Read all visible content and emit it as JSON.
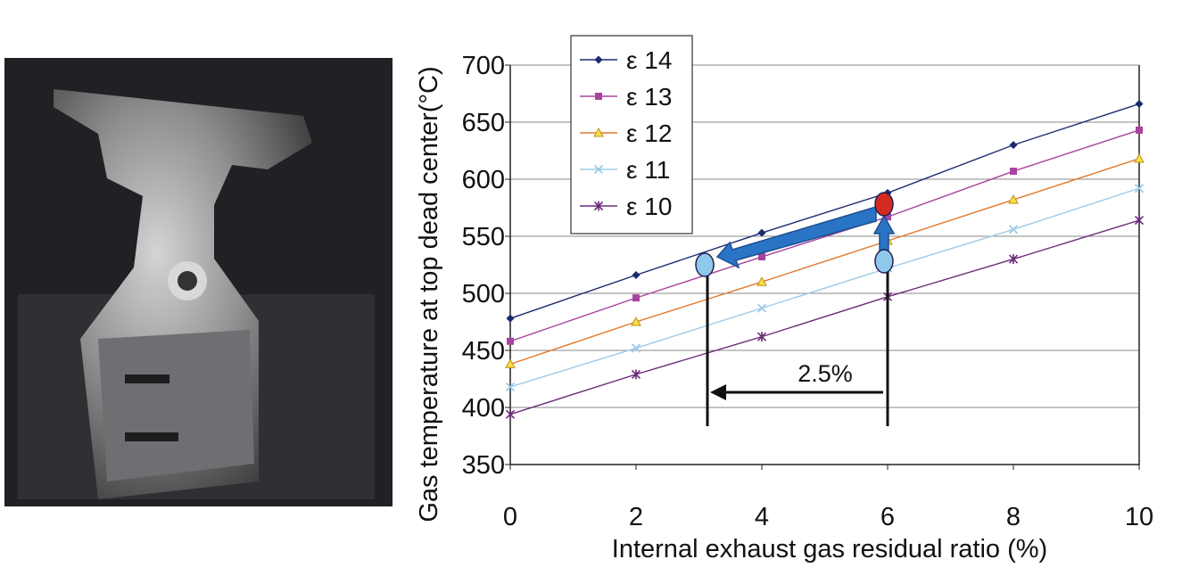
{
  "chart_data": {
    "type": "line",
    "ylabel": "Gas temperature at top dead center(°C)",
    "xlabel": "Internal exhaust gas residual ratio  (%)",
    "annotation": "2.5%",
    "x": [
      0,
      2,
      4,
      6,
      8,
      10
    ],
    "xlim": [
      0,
      10
    ],
    "xticks": [
      0,
      2,
      4,
      6,
      8,
      10
    ],
    "ylim": [
      350,
      700
    ],
    "yticks": [
      350,
      400,
      450,
      500,
      550,
      600,
      650,
      700
    ],
    "grid": true,
    "legend": "upper left",
    "series": [
      {
        "name": "ε 14",
        "color": "#1c2a6e",
        "marker": "diamond",
        "values": [
          478,
          516,
          553,
          588,
          630,
          666
        ]
      },
      {
        "name": "ε 13",
        "color": "#a8439f",
        "marker": "square",
        "values": [
          458,
          496,
          532,
          567,
          607,
          643
        ]
      },
      {
        "name": "ε 12",
        "color": "#e0782a",
        "marker": "triangle",
        "values": [
          438,
          475,
          510,
          546,
          582,
          618
        ]
      },
      {
        "name": "ε 11",
        "color": "#9dcbe6",
        "marker": "x",
        "values": [
          418,
          452,
          487,
          522,
          556,
          592
        ]
      },
      {
        "name": "ε 10",
        "color": "#6b2a78",
        "marker": "star",
        "values": [
          394,
          429,
          462,
          497,
          530,
          564
        ]
      }
    ]
  }
}
